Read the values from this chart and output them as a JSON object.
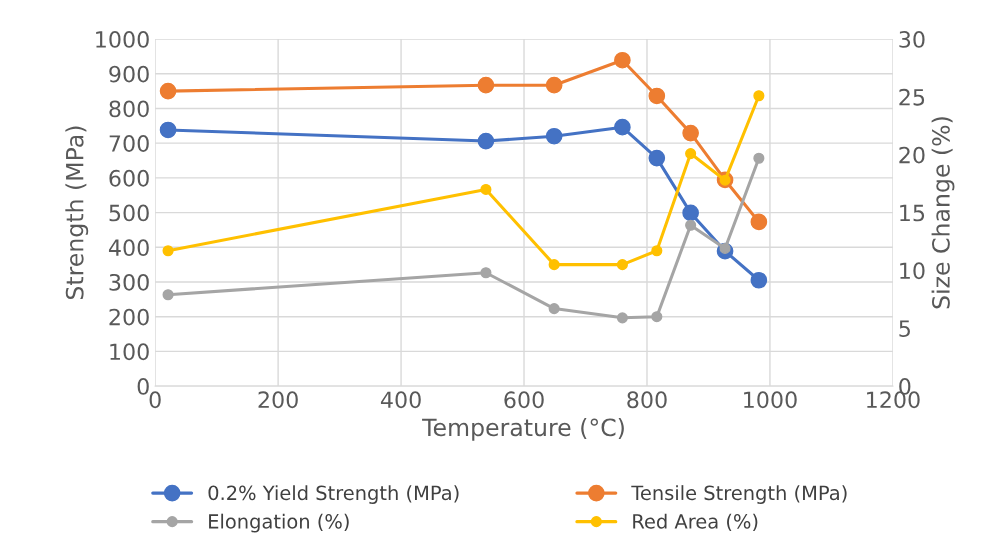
{
  "chart_data": {
    "type": "line",
    "xlabel": "Temperature (°C)",
    "ylabel": "Strength (MPa)",
    "y2label": "Size Change (%)",
    "x": [
      21,
      538,
      649,
      760,
      816,
      871,
      927,
      982
    ],
    "xlim": [
      0,
      1200
    ],
    "xticks": [
      0,
      200,
      400,
      600,
      800,
      1000,
      1200
    ],
    "ylim": [
      0,
      1000
    ],
    "yticks": [
      0,
      100,
      200,
      300,
      400,
      500,
      600,
      700,
      800,
      900,
      1000
    ],
    "y2lim": [
      0,
      30
    ],
    "y2ticks": [
      0,
      5,
      10,
      15,
      20,
      25,
      30
    ],
    "grid": true,
    "legend": "bottom",
    "marker": "circle",
    "line_style": "solid",
    "series": [
      {
        "name": "0.2% Yield Strength (MPa)",
        "color": "#4472c4",
        "values": [
          738,
          706,
          720,
          746,
          657,
          499,
          389,
          305
        ]
      },
      {
        "name": "Tensile Strength (MPa)",
        "color": "#ed7d31",
        "values": [
          850,
          867,
          867,
          939,
          836,
          729,
          594,
          473
        ]
      },
      {
        "name": "Elongation (%)",
        "color": "#a5a5a5",
        "axis": "y2",
        "values": [
          7.9,
          9.8,
          6.7,
          5.9,
          6.0,
          13.9,
          11.9,
          19.7
        ]
      },
      {
        "name": "Red Area (%)",
        "color": "#ffc000",
        "axis": "y2",
        "values": [
          11.7,
          17.0,
          10.5,
          10.5,
          11.7,
          20.1,
          17.8,
          25.1
        ]
      }
    ]
  }
}
